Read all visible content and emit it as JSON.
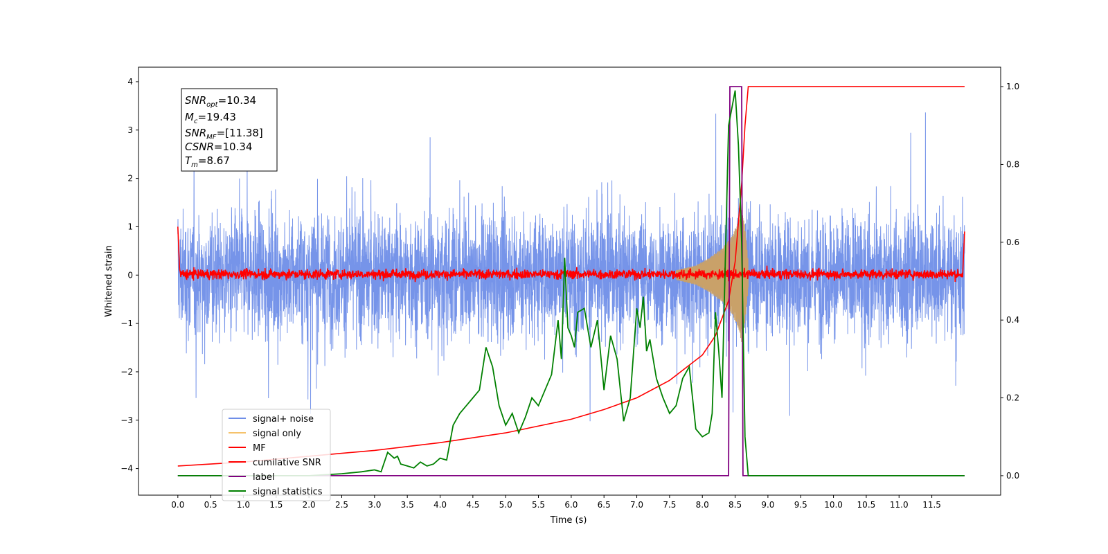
{
  "chart_data": {
    "type": "line",
    "xlabel": "Time (s)",
    "ylabel": "Whitened strain",
    "xlim": [
      -0.6,
      12.55
    ],
    "ylim": [
      -4.55,
      4.3
    ],
    "y2lim": [
      -0.05,
      1.05
    ],
    "x_ticks": [
      "0.0",
      "0.5",
      "1.0",
      "1.5",
      "2.0",
      "2.5",
      "3.0",
      "3.5",
      "4.0",
      "4.5",
      "5.0",
      "5.5",
      "6.0",
      "6.5",
      "7.0",
      "7.5",
      "8.0",
      "8.5",
      "9.0",
      "9.5",
      "10.0",
      "10.5",
      "11.0",
      "11.5"
    ],
    "y_ticks": [
      "4",
      "3",
      "2",
      "1",
      "0",
      "−1",
      "−2",
      "−3",
      "−4"
    ],
    "y2_ticks": [
      "1.0",
      "0.8",
      "0.6",
      "0.4",
      "0.2",
      "0.0"
    ],
    "annotation": {
      "snr_opt": {
        "sym": "SNR",
        "sub": "opt",
        "val": "=10.34"
      },
      "mc": {
        "sym": "M",
        "sub": "c",
        "val": "=19.43"
      },
      "snr_mf": {
        "sym": "SNR",
        "sub": "MF",
        "val": "=[11.38]"
      },
      "csnr": {
        "sym": "CSNR",
        "sub": "",
        "val": "=10.34"
      },
      "tm": {
        "sym": "T",
        "sub": "m",
        "val": "=8.67"
      }
    },
    "legend_position": "lower-left",
    "colors": {
      "noise": "#6f8ee8",
      "signal": "#f5c26b",
      "mf": "#ff0000",
      "csnr": "#ff0000",
      "label": "#800080",
      "stats": "#008000"
    },
    "series": [
      {
        "name": "signal+ noise",
        "axis": "left",
        "description_values": {
          "x_range": [
            0.0,
            12.0
          ],
          "typical_amplitude": 2.0,
          "extremes": [
            -3.8,
            3.85
          ]
        }
      },
      {
        "name": "signal only",
        "axis": "left",
        "envelope": {
          "x": [
            7.6,
            7.9,
            8.1,
            8.3,
            8.45,
            8.55,
            8.6,
            8.65,
            8.7
          ],
          "amp": [
            0.1,
            0.2,
            0.35,
            0.55,
            0.8,
            1.1,
            1.4,
            1.0,
            0.3
          ]
        }
      },
      {
        "name": "MF",
        "axis": "left",
        "x_range": [
          0.0,
          12.0
        ],
        "mean": 0.02,
        "noise_amplitude": 0.12,
        "edge_peaks": [
          1.0,
          0.9
        ]
      },
      {
        "name": "cumilative SNR",
        "axis": "right",
        "x": [
          0.0,
          1.0,
          2.0,
          3.0,
          4.0,
          5.0,
          6.0,
          6.5,
          7.0,
          7.5,
          8.0,
          8.2,
          8.4,
          8.5,
          8.6,
          8.65,
          8.7,
          12.0
        ],
        "values": [
          0.025,
          0.035,
          0.05,
          0.065,
          0.085,
          0.11,
          0.145,
          0.17,
          0.2,
          0.245,
          0.31,
          0.36,
          0.45,
          0.55,
          0.75,
          0.9,
          1.0,
          1.0
        ]
      },
      {
        "name": "label",
        "axis": "right",
        "x": [
          0.0,
          8.4,
          8.42,
          8.6,
          8.62,
          12.0
        ],
        "values": [
          0.0,
          0.0,
          1.0,
          1.0,
          0.0,
          0.0
        ]
      },
      {
        "name": "signal statistics",
        "axis": "right",
        "x": [
          0.0,
          1.0,
          2.0,
          2.5,
          2.8,
          3.0,
          3.1,
          3.2,
          3.3,
          3.35,
          3.4,
          3.5,
          3.6,
          3.7,
          3.8,
          3.9,
          4.0,
          4.1,
          4.2,
          4.3,
          4.4,
          4.5,
          4.6,
          4.7,
          4.8,
          4.9,
          5.0,
          5.1,
          5.2,
          5.3,
          5.4,
          5.5,
          5.6,
          5.7,
          5.8,
          5.85,
          5.9,
          5.95,
          6.0,
          6.05,
          6.1,
          6.2,
          6.3,
          6.4,
          6.5,
          6.6,
          6.7,
          6.8,
          6.9,
          7.0,
          7.05,
          7.1,
          7.15,
          7.2,
          7.3,
          7.4,
          7.5,
          7.6,
          7.7,
          7.8,
          7.9,
          8.0,
          8.1,
          8.15,
          8.2,
          8.25,
          8.3,
          8.4,
          8.5,
          8.55,
          8.6,
          8.65,
          8.7,
          12.0
        ],
        "values": [
          0.0,
          0.0,
          0.0,
          0.005,
          0.01,
          0.015,
          0.01,
          0.06,
          0.045,
          0.05,
          0.03,
          0.025,
          0.02,
          0.035,
          0.025,
          0.03,
          0.045,
          0.04,
          0.13,
          0.16,
          0.18,
          0.2,
          0.22,
          0.33,
          0.28,
          0.18,
          0.13,
          0.16,
          0.11,
          0.15,
          0.2,
          0.18,
          0.22,
          0.26,
          0.4,
          0.3,
          0.56,
          0.38,
          0.36,
          0.33,
          0.42,
          0.43,
          0.33,
          0.4,
          0.22,
          0.36,
          0.3,
          0.14,
          0.2,
          0.43,
          0.38,
          0.46,
          0.32,
          0.35,
          0.25,
          0.2,
          0.16,
          0.18,
          0.25,
          0.28,
          0.12,
          0.1,
          0.11,
          0.16,
          0.42,
          0.32,
          0.2,
          0.9,
          0.99,
          0.85,
          0.6,
          0.1,
          0.0,
          0.0
        ]
      }
    ]
  }
}
